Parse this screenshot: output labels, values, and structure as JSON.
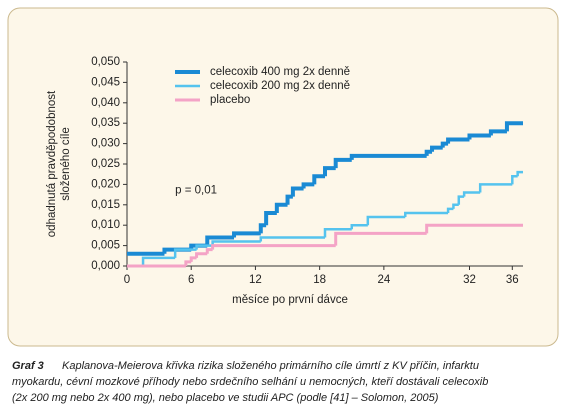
{
  "chart_data": {
    "type": "line",
    "step": true,
    "y_label": [
      "odhadnutá pravděpodobnost",
      "složeného cíle"
    ],
    "x_label": "měsíce po první dávce",
    "annotation": {
      "text": "p = 0,01",
      "x": 4.5,
      "y": 0.0185
    },
    "xlim": [
      0,
      37
    ],
    "ylim": [
      0,
      0.05
    ],
    "xticks": [
      0,
      6,
      12,
      18,
      24,
      32,
      36
    ],
    "yticks": [
      {
        "value": 0,
        "label": "0,000"
      },
      {
        "value": 0.005,
        "label": "0,005"
      },
      {
        "value": 0.01,
        "label": "0,010"
      },
      {
        "value": 0.015,
        "label": "0,015"
      },
      {
        "value": 0.02,
        "label": "0,020"
      },
      {
        "value": 0.025,
        "label": "0,025"
      },
      {
        "value": 0.03,
        "label": "0,030"
      },
      {
        "value": 0.035,
        "label": "0,035"
      },
      {
        "value": 0.04,
        "label": "0,040"
      },
      {
        "value": 0.045,
        "label": "0,045"
      },
      {
        "value": 0.05,
        "label": "0,050"
      }
    ],
    "legend_position": "upper left",
    "series": [
      {
        "name": "celecoxib 400 mg 2x denně",
        "color": "#1a8ad4",
        "width": 4,
        "x": [
          0,
          3.5,
          6,
          7.5,
          10,
          12.5,
          13,
          14,
          15,
          15.5,
          16.5,
          17.5,
          18.5,
          19.5,
          21,
          28,
          28.5,
          29.5,
          30,
          32,
          34,
          35.5,
          37
        ],
        "values": [
          0.003,
          0.004,
          0.005,
          0.007,
          0.008,
          0.01,
          0.013,
          0.015,
          0.017,
          0.019,
          0.02,
          0.022,
          0.024,
          0.026,
          0.027,
          0.028,
          0.029,
          0.03,
          0.031,
          0.032,
          0.033,
          0.035,
          0.035
        ]
      },
      {
        "name": "celecoxib 200 mg 2x denně",
        "color": "#55c3ee",
        "width": 2.5,
        "x": [
          0,
          1.5,
          4.5,
          6.5,
          8,
          12.5,
          18.5,
          21,
          22.5,
          26,
          30,
          30.5,
          31,
          31.5,
          33,
          36,
          36.5,
          37
        ],
        "values": [
          0,
          0.002,
          0.004,
          0.005,
          0.006,
          0.007,
          0.009,
          0.01,
          0.012,
          0.013,
          0.014,
          0.015,
          0.017,
          0.018,
          0.02,
          0.022,
          0.023,
          0.023
        ]
      },
      {
        "name": "placebo",
        "color": "#f4a3c6",
        "width": 3,
        "x": [
          0,
          5.5,
          6,
          6.5,
          7.5,
          8,
          19.5,
          28,
          37
        ],
        "values": [
          0,
          0.001,
          0.002,
          0.003,
          0.004,
          0.005,
          0.008,
          0.01,
          0.01
        ]
      }
    ],
    "caption_label": "Graf 3",
    "caption_lines": [
      "Kaplanova-Meierova křivka rizika složeného primárního cíle úmrtí z KV příčin, infarktu",
      "myokardu, cévní mozkové příhody nebo srdečního selhání u nemocných, kteří dostávali celecoxib",
      "(2x 200 mg nebo 2x 400 mg), nebo placebo ve studii APC (podle [41] – Solomon, 2005)"
    ]
  }
}
